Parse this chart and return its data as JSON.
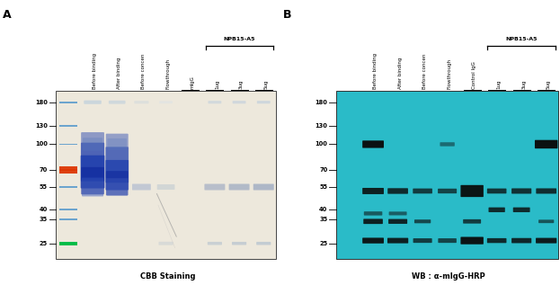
{
  "fig_width": 6.23,
  "fig_height": 3.17,
  "dpi": 100,
  "panel_A": {
    "label": "A",
    "title": "CBB Staining",
    "gel_bg": "#ede8dc",
    "mw_markers": [
      180,
      130,
      100,
      70,
      55,
      40,
      35,
      25
    ],
    "lanes": [
      "Before binding",
      "After binding",
      "Before concen",
      "Flowthrough",
      "mIgG",
      "1ug",
      "3ug",
      "5ug"
    ],
    "npb15_label": "NPB15-A5",
    "marker_colors": {
      "70": "#e05020",
      "25": "#00cc55",
      "100": "#5599cc",
      "55": "#5599cc",
      "40": "#5599cc",
      "35": "#5599cc",
      "180": "#5599cc",
      "130": "#5599cc"
    }
  },
  "panel_B": {
    "label": "B",
    "title": "WB : α-mIgG-HRP",
    "gel_bg": "#2abbc8",
    "mw_markers": [
      180,
      130,
      100,
      70,
      55,
      40,
      35,
      25
    ],
    "lanes": [
      "Before binding",
      "After binding",
      "Before concen",
      "Flowthrough",
      "Control IgG",
      "1ug",
      "3ug",
      "5ug"
    ],
    "npb15_label": "NPB15-A5"
  }
}
